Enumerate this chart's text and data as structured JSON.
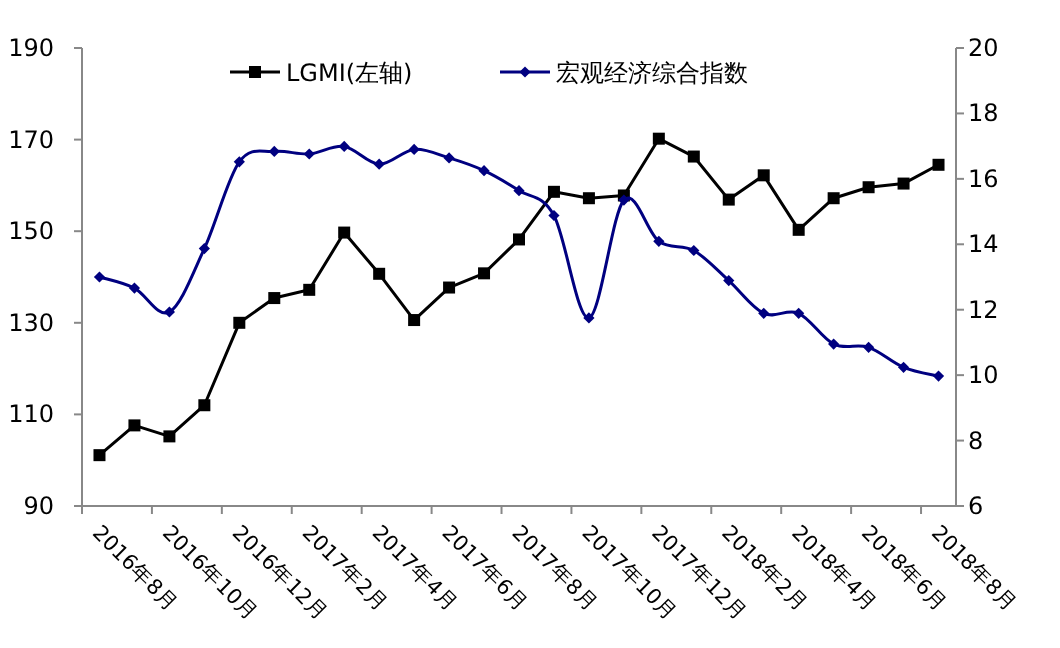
{
  "chart_data": {
    "type": "line",
    "categories": [
      "2016年8月",
      null,
      "2016年10月",
      null,
      "2016年12月",
      null,
      "2017年2月",
      null,
      "2017年4月",
      null,
      "2017年6月",
      null,
      "2017年8月",
      null,
      "2017年10月",
      null,
      "2017年12月",
      null,
      "2018年2月",
      null,
      "2018年4月",
      null,
      "2018年6月",
      null,
      "2018年8月"
    ],
    "series": [
      {
        "name": "LGMI(左轴)",
        "color": "#000000",
        "marker": "square",
        "values": [
          101.1,
          107.6,
          105.2,
          112.0,
          130.0,
          135.4,
          137.2,
          149.7,
          140.7,
          130.6,
          137.7,
          140.8,
          148.2,
          158.6,
          157.2,
          157.8,
          170.2,
          166.3,
          156.9,
          162.2,
          150.3,
          157.2,
          159.6,
          160.4,
          164.5
        ]
      },
      {
        "name": "宏观经济综合指数",
        "color": "#000080",
        "marker": "diamond",
        "axis": "y2",
        "values": [
          13.0,
          12.66,
          11.93,
          13.87,
          16.52,
          16.84,
          16.76,
          16.99,
          16.45,
          16.9,
          16.64,
          16.25,
          15.64,
          14.88,
          11.75,
          15.35,
          14.09,
          13.81,
          12.89,
          11.89,
          11.89,
          10.95,
          10.85,
          10.24,
          9.97
        ]
      }
    ],
    "ylim": [
      90,
      190
    ],
    "yticks": [
      90,
      110,
      130,
      150,
      170,
      190
    ],
    "y2lim": [
      6,
      20
    ],
    "y2ticks": [
      6,
      8,
      10,
      12,
      14,
      16,
      18,
      20
    ],
    "grid": false,
    "legend": "top"
  }
}
